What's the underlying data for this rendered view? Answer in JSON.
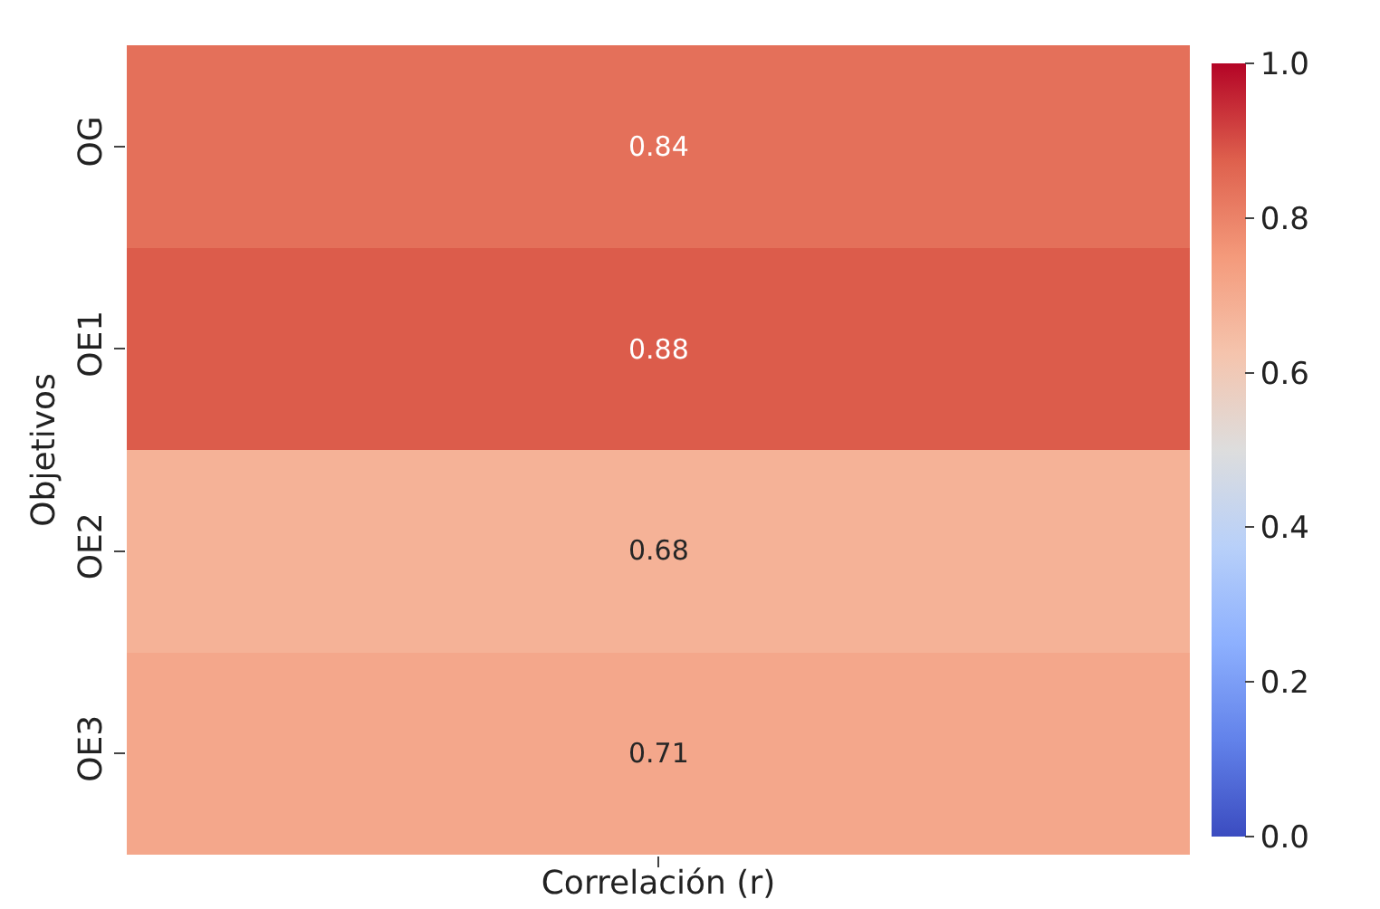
{
  "chart_data": {
    "type": "heatmap",
    "xlabel": "Correlación (r)",
    "ylabel": "Objetivos",
    "categories": [
      null
    ],
    "y_categories": [
      "OG",
      "OE1",
      "OE2",
      "OE3"
    ],
    "cells": [
      [
        0.84
      ],
      [
        0.88
      ],
      [
        0.68
      ],
      [
        0.71
      ]
    ],
    "data_labels": true,
    "clim": [
      0,
      1
    ],
    "cticks": [
      {
        "value": 0,
        "label": "0.0"
      },
      0.2,
      0.4,
      0.6,
      0.8,
      {
        "value": 1,
        "label": "1.0"
      }
    ]
  }
}
